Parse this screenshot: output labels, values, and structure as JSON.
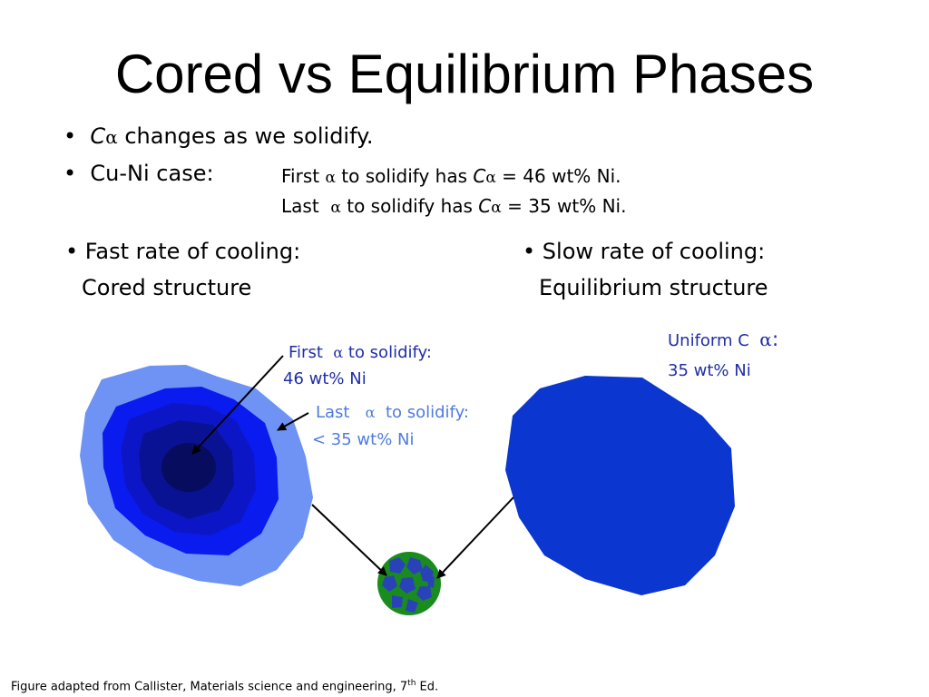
{
  "slide": {
    "title": "Cored vs Equilibrium Phases",
    "bullet1": {
      "bullet": "•",
      "var": "C",
      "greek": "α",
      "rest": "changes as we solidify."
    },
    "bullet2": {
      "bullet": "•",
      "text": "Cu-Ni case:"
    },
    "first_line": {
      "a": "First",
      "greek": "α",
      "b": "to solidify has",
      "var": "C",
      "greek2": "α",
      "c": "= 46 wt% Ni."
    },
    "last_line": {
      "a": "Last",
      "greek": "α",
      "b": "to solidify has",
      "var": "C",
      "greek2": "α",
      "c": "= 35 wt% Ni."
    },
    "fast": {
      "label": "• Fast rate of cooling:",
      "sub": "Cored structure"
    },
    "slow": {
      "label": "• Slow rate of cooling:",
      "sub": "Equilibrium structure"
    },
    "annot_first": {
      "a": "First",
      "greek": "α",
      "b": "to solidify:",
      "value": "46 wt% Ni"
    },
    "annot_last": {
      "a": "Last",
      "greek": "α",
      "b": "to solidify:",
      "value": "< 35 wt% Ni"
    },
    "annot_uniform": {
      "a": "Uniform C",
      "greek": "α",
      "colon": ":",
      "value": "35 wt% Ni"
    },
    "caption": {
      "text": "Figure adapted from Callister, Materials science and engineering, 7",
      "sup": "th",
      "end": " Ed."
    }
  },
  "colors": {
    "cored_outer": "#6e93f5",
    "cored_ring2": "#0a1bf0",
    "cored_ring3": "#0d16c6",
    "cored_ring4": "#0a1294",
    "cored_core": "#070c5e",
    "equilibrium": "#0b36cf",
    "grain_fill": "#1a8c1f",
    "grain_blobs": "#2a42b8",
    "annot_dark": "#1f2fa5",
    "annot_light": "#4f7bde"
  }
}
